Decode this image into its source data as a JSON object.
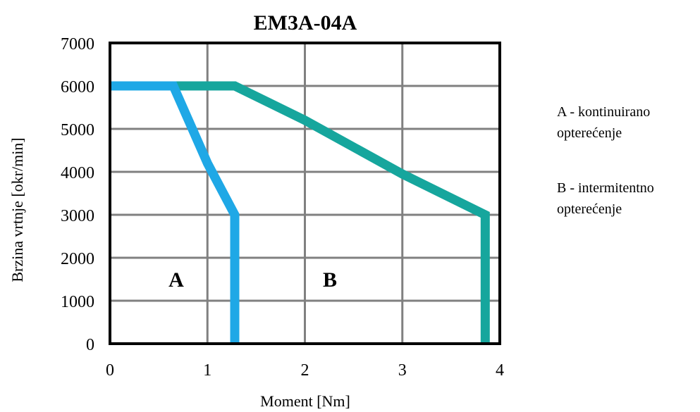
{
  "chart_data": {
    "type": "line",
    "title": "EM3A-04A",
    "xlabel": "Moment [Nm]",
    "ylabel": "Brzina vrtnje [okr/min]",
    "xlim": [
      0,
      4
    ],
    "ylim": [
      0,
      7000
    ],
    "x_ticks": [
      "0",
      "1",
      "2",
      "3",
      "4"
    ],
    "y_ticks": [
      "0",
      "1000",
      "2000",
      "3000",
      "4000",
      "5000",
      "6000",
      "7000"
    ],
    "grid": true,
    "series": [
      {
        "label": "A",
        "color": "#1fa8e6",
        "points": [
          [
            0,
            6000
          ],
          [
            0.65,
            6000
          ],
          [
            1.0,
            4200
          ],
          [
            1.28,
            3000
          ],
          [
            1.28,
            0
          ]
        ]
      },
      {
        "label": "B",
        "color": "#16a69d",
        "points": [
          [
            0,
            6000
          ],
          [
            1.28,
            6000
          ],
          [
            2.0,
            5200
          ],
          [
            3.0,
            3950
          ],
          [
            3.85,
            3000
          ],
          [
            3.85,
            0
          ]
        ]
      }
    ],
    "region_labels": [
      "A",
      "B"
    ],
    "annotations": [
      "A - kontinuirano",
      "opterećenje",
      "B - intermitentno",
      "opterećenje"
    ]
  }
}
